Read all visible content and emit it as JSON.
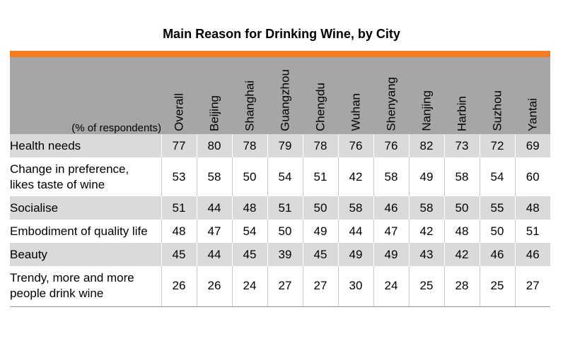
{
  "chart_data": {
    "type": "table",
    "title": "Main Reason for Drinking Wine, by City",
    "unit_label": "(% of respondents)",
    "columns": [
      "Overall",
      "Beijing",
      "Shanghai",
      "Guangzhou",
      "Chengdu",
      "Wuhan",
      "Shenyang",
      "Nanjing",
      "Harbin",
      "Suzhou",
      "Yantai"
    ],
    "rows": [
      {
        "label": [
          "Health needs"
        ],
        "values": [
          77,
          80,
          78,
          79,
          78,
          76,
          76,
          82,
          73,
          72,
          69
        ]
      },
      {
        "label": [
          "Change in preference,",
          "likes taste of wine"
        ],
        "values": [
          53,
          58,
          50,
          54,
          51,
          42,
          58,
          49,
          58,
          54,
          60
        ]
      },
      {
        "label": [
          "Socialise"
        ],
        "values": [
          51,
          44,
          48,
          51,
          50,
          58,
          46,
          58,
          50,
          55,
          48
        ]
      },
      {
        "label": [
          "Embodiment of quality life"
        ],
        "values": [
          48,
          47,
          54,
          50,
          49,
          44,
          47,
          42,
          48,
          50,
          51
        ]
      },
      {
        "label": [
          "Beauty"
        ],
        "values": [
          45,
          44,
          45,
          39,
          45,
          49,
          49,
          43,
          42,
          46,
          46
        ]
      },
      {
        "label": [
          "Trendy, more and more",
          "people drink wine"
        ],
        "values": [
          26,
          26,
          24,
          27,
          27,
          30,
          24,
          25,
          28,
          25,
          27
        ]
      }
    ]
  },
  "colors": {
    "accent_bar": "#f47b20",
    "header_bg": "#a6a6a6",
    "shaded_row": "#dadada"
  }
}
